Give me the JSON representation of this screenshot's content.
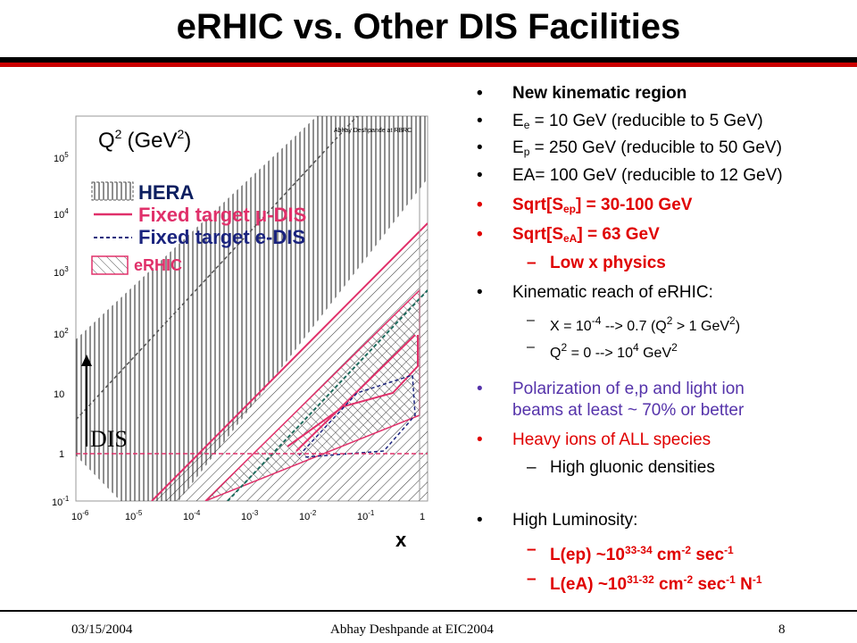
{
  "title": "eRHIC vs. Other DIS Facilities",
  "figure": {
    "y_axis_label": "Q",
    "y_axis_label_sup": "2",
    "y_axis_unit_pre": "(GeV",
    "y_axis_unit_sup": "2",
    "y_axis_unit_post": ")",
    "credit": "Abhay Deshpande at RBRC",
    "x_axis_label": "x",
    "legend": [
      {
        "label": "HERA"
      },
      {
        "label": "Fixed target μ-DIS"
      },
      {
        "label": "Fixed target e-DIS"
      },
      {
        "label": "eRHIC"
      }
    ],
    "dis_label": "DIS",
    "y_ticks": [
      {
        "base": "10",
        "exp": "5"
      },
      {
        "base": "10",
        "exp": "4"
      },
      {
        "base": "10",
        "exp": "3"
      },
      {
        "base": "10",
        "exp": "2"
      },
      {
        "base": "10",
        "exp": ""
      },
      {
        "base": "1",
        "exp": ""
      },
      {
        "base": "10",
        "exp": "-1"
      }
    ],
    "x_ticks": [
      {
        "base": "10",
        "exp": "-6"
      },
      {
        "base": "10",
        "exp": "-5"
      },
      {
        "base": "10",
        "exp": "-4"
      },
      {
        "base": "10",
        "exp": "-3"
      },
      {
        "base": "10",
        "exp": "-2"
      },
      {
        "base": "10",
        "exp": "-1"
      },
      {
        "base": "1",
        "exp": ""
      }
    ],
    "colors": {
      "hera": "#333333",
      "fixed_mu": "#e0306a",
      "fixed_e": "#1a237e",
      "erhic": "#e0306a"
    }
  },
  "bullets": {
    "b1": "New kinematic region",
    "b2_a": "E",
    "b2_sub": "e",
    "b2_b": " = 10 GeV (reducible to 5 GeV)",
    "b3_a": "E",
    "b3_sub": "p",
    "b3_b": " = 250 GeV (reducible to 50 GeV)",
    "b4": "EA= 100 GeV (reducible to 12 GeV)",
    "b5_a": "Sqrt[S",
    "b5_sub": "ep",
    "b5_b": "] = 30-100 GeV",
    "b6_a": "Sqrt[S",
    "b6_sub": "eA",
    "b6_b": "] = 63 GeV",
    "b6_sub1": "Low x physics",
    "b7": "Kinematic reach of eRHIC:",
    "b7_s1_a": "X = 10",
    "b7_s1_sup1": "-4",
    "b7_s1_b": " --> 0.7 (Q",
    "b7_s1_sup2": "2",
    "b7_s1_c": " > 1 GeV",
    "b7_s1_sup3": "2",
    "b7_s1_d": ")",
    "b7_s2_a": "Q",
    "b7_s2_sup1": "2",
    "b7_s2_b": " = 0 --> 10",
    "b7_s2_sup2": "4",
    "b7_s2_c": " GeV",
    "b7_s2_sup3": "2",
    "b8_line1": "Polarization of e,p and light ion",
    "b8_line2": "beams at least ~ 70% or better",
    "b9": "Heavy ions of ALL species",
    "b9_sub1": "High gluonic densities",
    "b10": "High Luminosity:",
    "b10_s1_a": "L(ep) ~10",
    "b10_s1_sup1": "33-34",
    "b10_s1_b": " cm",
    "b10_s1_sup2": "-2",
    "b10_s1_c": " sec",
    "b10_s1_sup3": "-1",
    "b10_s2_a": "L(eA) ~10",
    "b10_s2_sup1": "31-32",
    "b10_s2_b": " cm",
    "b10_s2_sup2": "-2",
    "b10_s2_c": " sec",
    "b10_s2_sup3": "-1",
    "b10_s2_d": " N",
    "b10_s2_sup4": "-1",
    "bullet_char": "•",
    "dash_char": "–"
  },
  "footer": {
    "date": "03/15/2004",
    "center": "Abhay Deshpande at EIC2004",
    "page": "8"
  }
}
